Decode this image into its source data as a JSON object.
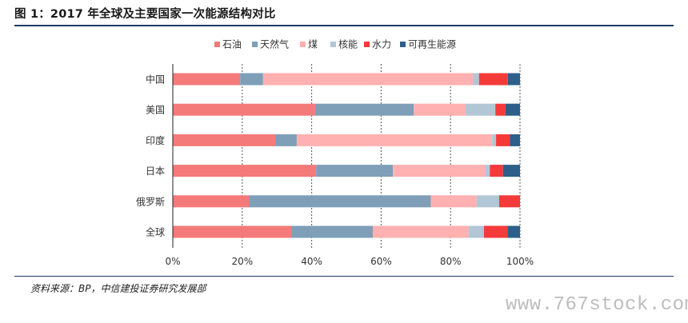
{
  "title": "图 1：2017 年全球及主要国家一次能源结构对比",
  "source": "资料来源：BP，中信建投证券研究发展部",
  "watermark": "www.767stock.com",
  "colors": {
    "oil": "#f47a7a",
    "gas": "#7f9fb8",
    "coal": "#ffb0b0",
    "nuclear": "#b2c6d6",
    "hydro": "#f53a3a",
    "renewable": "#2c5f8a"
  },
  "chart_data": {
    "type": "bar",
    "orientation": "horizontal",
    "stacked": true,
    "categories": [
      "中国",
      "美国",
      "印度",
      "日本",
      "俄罗斯",
      "全球"
    ],
    "series": [
      {
        "name": "石油",
        "color_key": "oil",
        "values": [
          19.4,
          41.0,
          29.5,
          41.3,
          22.0,
          34.2
        ]
      },
      {
        "name": "天然气",
        "color_key": "gas",
        "values": [
          6.6,
          28.4,
          6.2,
          22.1,
          52.3,
          23.4
        ]
      },
      {
        "name": "煤",
        "color_key": "coal",
        "values": [
          60.4,
          14.9,
          56.3,
          26.5,
          13.2,
          27.6
        ]
      },
      {
        "name": "核能",
        "color_key": "nuclear",
        "values": [
          1.8,
          8.6,
          1.1,
          1.4,
          6.5,
          4.4
        ]
      },
      {
        "name": "水力",
        "color_key": "hydro",
        "values": [
          8.3,
          2.9,
          4.0,
          3.8,
          6.0,
          6.8
        ]
      },
      {
        "name": "可再生能源",
        "color_key": "renewable",
        "values": [
          3.5,
          4.2,
          2.9,
          4.9,
          0.0,
          3.6
        ]
      }
    ],
    "xlim": [
      0,
      100
    ],
    "xticks": [
      "0%",
      "20%",
      "40%",
      "60%",
      "80%",
      "100%"
    ],
    "xlabel": "",
    "ylabel": "",
    "legend_position": "top",
    "gridlines": "dashed vertical"
  }
}
